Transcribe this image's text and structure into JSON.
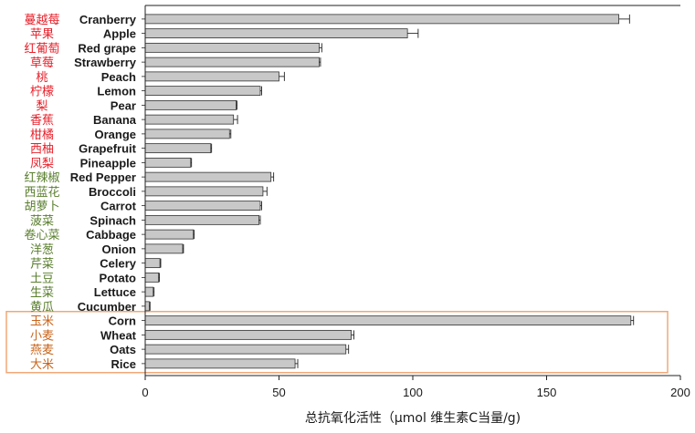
{
  "chart_data": {
    "type": "bar",
    "orientation": "horizontal",
    "xlabel": "总抗氧化活性（μmol 维生素C当量/g)",
    "xlim": [
      0,
      200
    ],
    "xticks": [
      0,
      50,
      100,
      150,
      200
    ],
    "bar_color": "#c8c8c8",
    "category_colors": {
      "fruit": "#e8202a",
      "vegetable": "#5a7f2e",
      "grain": "#c8641a"
    },
    "highlight_box": {
      "group": "grain",
      "color": "#f0a878"
    },
    "categories": [
      {
        "cn": "蔓越莓",
        "en": "Cranberry",
        "group": "fruit",
        "value": 177,
        "error": 4
      },
      {
        "cn": "苹果",
        "en": "Apple",
        "group": "fruit",
        "value": 98,
        "error": 4
      },
      {
        "cn": "红葡萄",
        "en": "Red grape",
        "group": "fruit",
        "value": 65,
        "error": 1
      },
      {
        "cn": "草莓",
        "en": "Strawberry",
        "group": "fruit",
        "value": 65,
        "error": 0.5
      },
      {
        "cn": "桃",
        "en": "Peach",
        "group": "fruit",
        "value": 50,
        "error": 2
      },
      {
        "cn": "柠檬",
        "en": "Lemon",
        "group": "fruit",
        "value": 43,
        "error": 0.5
      },
      {
        "cn": "梨",
        "en": "Pear",
        "group": "fruit",
        "value": 34,
        "error": 0.3
      },
      {
        "cn": "香蕉",
        "en": "Banana",
        "group": "fruit",
        "value": 33,
        "error": 1.5
      },
      {
        "cn": "柑橘",
        "en": "Orange",
        "group": "fruit",
        "value": 31.5,
        "error": 0.5
      },
      {
        "cn": "西柚",
        "en": "Grapefruit",
        "group": "fruit",
        "value": 24.5,
        "error": 0.3
      },
      {
        "cn": "凤梨",
        "en": "Pineapple",
        "group": "fruit",
        "value": 17,
        "error": 0.3
      },
      {
        "cn": "红辣椒",
        "en": "Red Pepper",
        "group": "vegetable",
        "value": 47,
        "error": 1
      },
      {
        "cn": "西蓝花",
        "en": "Broccoli",
        "group": "vegetable",
        "value": 44,
        "error": 1.5
      },
      {
        "cn": "胡萝卜",
        "en": "Carrot",
        "group": "vegetable",
        "value": 43,
        "error": 0.5
      },
      {
        "cn": "菠菜",
        "en": "Spinach",
        "group": "vegetable",
        "value": 42.5,
        "error": 0.5
      },
      {
        "cn": "卷心菜",
        "en": "Cabbage",
        "group": "vegetable",
        "value": 18,
        "error": 0.3
      },
      {
        "cn": "洋葱",
        "en": "Onion",
        "group": "vegetable",
        "value": 14,
        "error": 0.3
      },
      {
        "cn": "芹菜",
        "en": "Celery",
        "group": "vegetable",
        "value": 5.5,
        "error": 0.3
      },
      {
        "cn": "土豆",
        "en": "Potato",
        "group": "vegetable",
        "value": 5,
        "error": 0.3
      },
      {
        "cn": "生菜",
        "en": "Lettuce",
        "group": "vegetable",
        "value": 3,
        "error": 0.3
      },
      {
        "cn": "黄瓜",
        "en": "Cucumber",
        "group": "vegetable",
        "value": 1.5,
        "error": 0.3
      },
      {
        "cn": "玉米",
        "en": "Corn",
        "group": "grain",
        "value": 181.5,
        "error": 1
      },
      {
        "cn": "小麦",
        "en": "Wheat",
        "group": "grain",
        "value": 77,
        "error": 1
      },
      {
        "cn": "燕麦",
        "en": "Oats",
        "group": "grain",
        "value": 75,
        "error": 1
      },
      {
        "cn": "大米",
        "en": "Rice",
        "group": "grain",
        "value": 56,
        "error": 1
      }
    ]
  }
}
